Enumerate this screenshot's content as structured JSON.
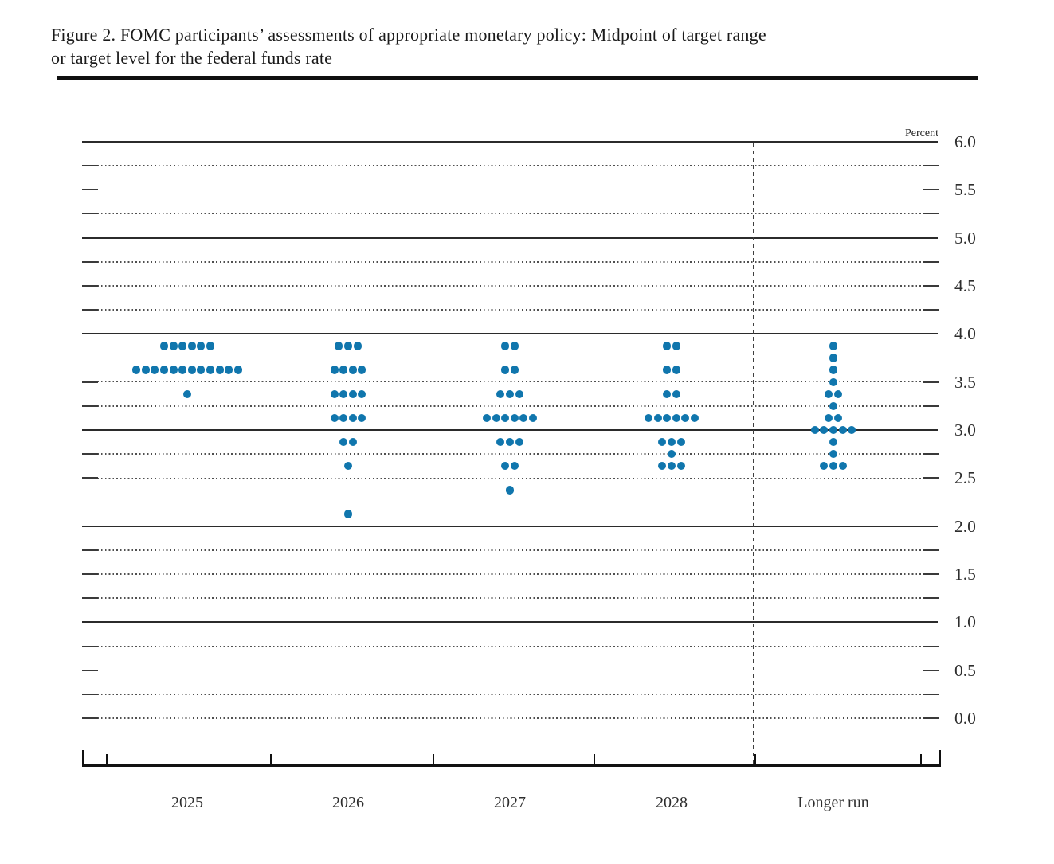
{
  "figure": {
    "title_line1": "Figure 2. FOMC participants’ assessments of appropriate monetary policy: Midpoint of target range",
    "title_line2": "or target level for the federal funds rate"
  },
  "chart_data": {
    "type": "scatter",
    "subtype": "fomc-dot-plot",
    "title": "Figure 2. FOMC participants’ assessments of appropriate monetary policy: Midpoint of target range or target level for the federal funds rate",
    "unit_label": "Percent",
    "ylabel": "Percent",
    "ylim": [
      0.0,
      6.0
    ],
    "ytick_step": 0.5,
    "ytick_labels": [
      "6.0",
      "5.5",
      "5.0",
      "4.5",
      "4.0",
      "3.5",
      "3.0",
      "2.5",
      "2.0",
      "1.5",
      "1.0",
      "0.5",
      "0.0"
    ],
    "grid": {
      "solid_lines_at": [
        6.0,
        5.0,
        4.0,
        3.0,
        2.0,
        1.0
      ],
      "dotted_line_step": 0.25,
      "zero_line_style": "dotted"
    },
    "legend_position": "none",
    "dot_color": "#1076ad",
    "axis_color": "#111111",
    "categories": [
      "2025",
      "2026",
      "2027",
      "2028",
      "Longer run"
    ],
    "series": [
      {
        "name": "2025",
        "dots": [
          {
            "rate": 3.875,
            "count": 6
          },
          {
            "rate": 3.625,
            "count": 12
          },
          {
            "rate": 3.375,
            "count": 1
          }
        ]
      },
      {
        "name": "2026",
        "dots": [
          {
            "rate": 3.875,
            "count": 3
          },
          {
            "rate": 3.625,
            "count": 4
          },
          {
            "rate": 3.375,
            "count": 4
          },
          {
            "rate": 3.125,
            "count": 4
          },
          {
            "rate": 2.875,
            "count": 2
          },
          {
            "rate": 2.625,
            "count": 1
          },
          {
            "rate": 2.125,
            "count": 1
          }
        ]
      },
      {
        "name": "2027",
        "dots": [
          {
            "rate": 3.875,
            "count": 2
          },
          {
            "rate": 3.625,
            "count": 2
          },
          {
            "rate": 3.375,
            "count": 3
          },
          {
            "rate": 3.125,
            "count": 6
          },
          {
            "rate": 2.875,
            "count": 3
          },
          {
            "rate": 2.625,
            "count": 2
          },
          {
            "rate": 2.375,
            "count": 1
          }
        ]
      },
      {
        "name": "2028",
        "dots": [
          {
            "rate": 3.875,
            "count": 2
          },
          {
            "rate": 3.625,
            "count": 2
          },
          {
            "rate": 3.375,
            "count": 2
          },
          {
            "rate": 3.125,
            "count": 6
          },
          {
            "rate": 2.875,
            "count": 3
          },
          {
            "rate": 2.75,
            "count": 1
          },
          {
            "rate": 2.625,
            "count": 3
          }
        ]
      },
      {
        "name": "Longer run",
        "dots": [
          {
            "rate": 3.875,
            "count": 1
          },
          {
            "rate": 3.75,
            "count": 1
          },
          {
            "rate": 3.625,
            "count": 1
          },
          {
            "rate": 3.5,
            "count": 1
          },
          {
            "rate": 3.375,
            "count": 2
          },
          {
            "rate": 3.25,
            "count": 1
          },
          {
            "rate": 3.125,
            "count": 2
          },
          {
            "rate": 3.0,
            "count": 5
          },
          {
            "rate": 2.875,
            "count": 1
          },
          {
            "rate": 2.75,
            "count": 1
          },
          {
            "rate": 2.625,
            "count": 3
          }
        ]
      }
    ],
    "separator": {
      "type": "dashed-vertical-line",
      "between": [
        "2028",
        "Longer run"
      ]
    }
  }
}
